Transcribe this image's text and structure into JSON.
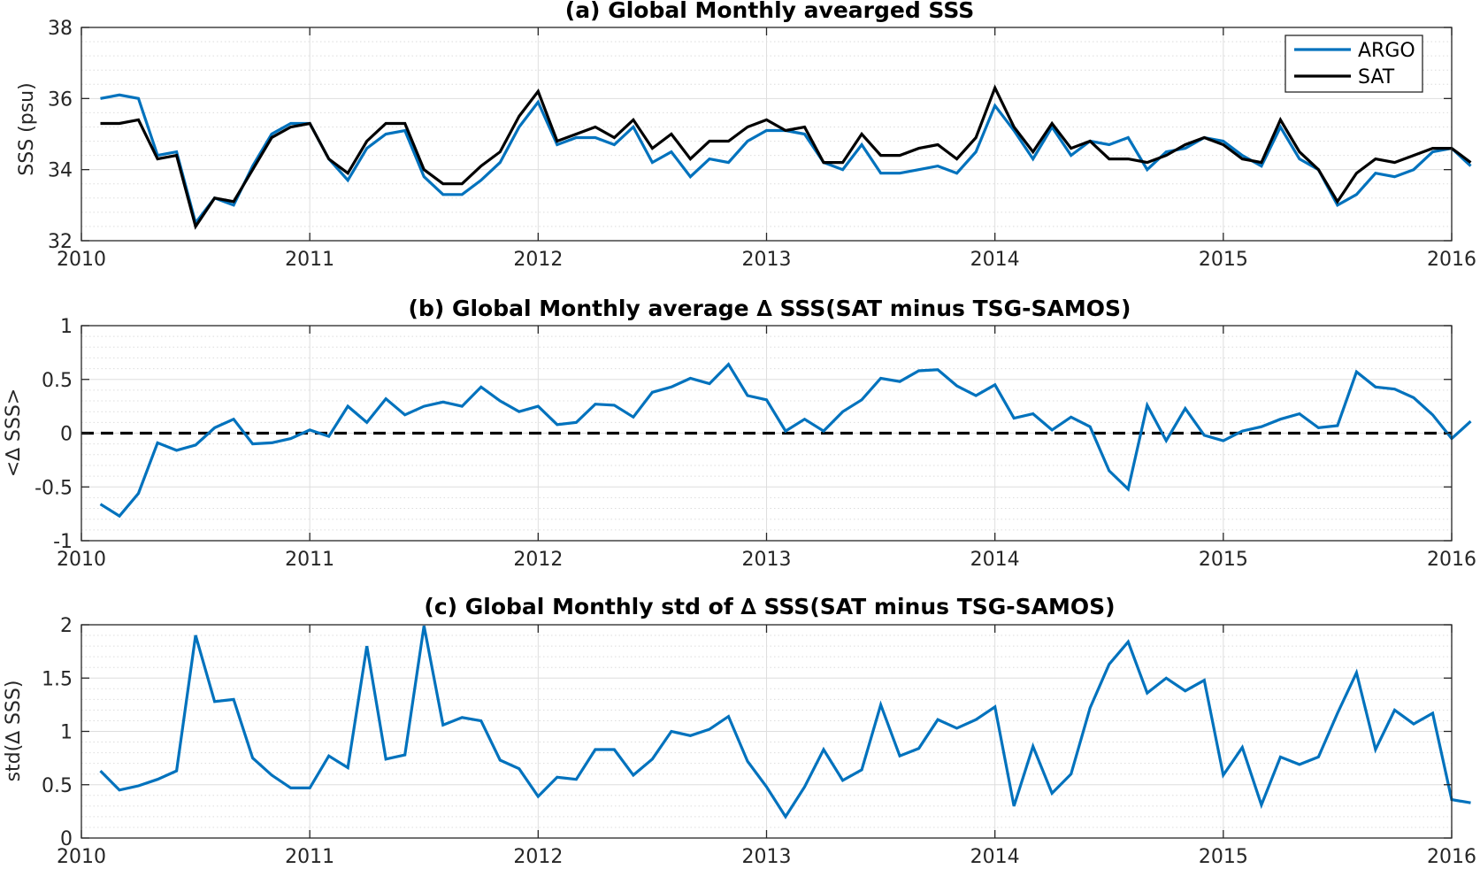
{
  "chart_data": [
    {
      "type": "line",
      "title": "(a) Global Monthly avearged SSS",
      "xlabel": "",
      "ylabel": "SSS (psu)",
      "xlim": [
        2010,
        2016
      ],
      "ylim": [
        32,
        38
      ],
      "xticks": [
        2010,
        2011,
        2012,
        2013,
        2014,
        2015,
        2016
      ],
      "xtick_labels": [
        "2010",
        "2011",
        "2012",
        "2013",
        "2014",
        "2015",
        "2016"
      ],
      "yticks": [
        32,
        34,
        36,
        38
      ],
      "ytick_labels": [
        "32",
        "34",
        "36",
        "38"
      ],
      "grid": true,
      "legend_position": "top-right",
      "series": [
        {
          "name": "ARGO",
          "color": "#0072bd",
          "values": [
            36.0,
            36.1,
            36.0,
            34.4,
            34.5,
            32.5,
            33.2,
            33.0,
            34.1,
            35.0,
            35.3,
            35.3,
            34.3,
            33.7,
            34.6,
            35.0,
            35.1,
            33.8,
            33.3,
            33.3,
            33.7,
            34.2,
            35.2,
            35.9,
            34.7,
            34.9,
            34.9,
            34.7,
            35.2,
            34.2,
            34.5,
            33.8,
            34.3,
            34.2,
            34.8,
            35.1,
            35.1,
            35.0,
            34.2,
            34.0,
            34.7,
            33.9,
            33.9,
            34.0,
            34.1,
            33.9,
            34.5,
            35.8,
            35.1,
            34.3,
            35.2,
            34.4,
            34.8,
            34.7,
            34.9,
            34.0,
            34.5,
            34.6,
            34.9,
            34.8,
            34.4,
            34.1,
            35.2,
            34.3,
            34.0,
            33.0,
            33.3,
            33.9,
            33.8,
            34.0,
            34.5,
            34.6,
            34.1
          ],
          "dates": [
            "2010-02",
            "2010-03",
            "2010-04",
            "2010-05",
            "2010-06",
            "2010-07",
            "2010-08",
            "2010-09",
            "2010-10",
            "2010-11",
            "2010-12",
            "2011-01",
            "2011-02",
            "2011-03",
            "2011-04",
            "2011-05",
            "2011-06",
            "2011-07",
            "2011-08",
            "2011-09",
            "2011-10",
            "2011-11",
            "2011-12",
            "2012-01",
            "2012-02",
            "2012-03",
            "2012-04",
            "2012-05",
            "2012-06",
            "2012-07",
            "2012-08",
            "2012-09",
            "2012-10",
            "2012-11",
            "2012-12",
            "2013-01",
            "2013-02",
            "2013-03",
            "2013-04",
            "2013-05",
            "2013-06",
            "2013-07",
            "2013-08",
            "2013-09",
            "2013-10",
            "2013-11",
            "2013-12",
            "2014-01",
            "2014-02",
            "2014-03",
            "2014-04",
            "2014-05",
            "2014-06",
            "2014-07",
            "2014-08",
            "2014-09",
            "2014-10",
            "2014-11",
            "2014-12",
            "2015-01",
            "2015-02",
            "2015-03",
            "2015-04",
            "2015-05",
            "2015-06",
            "2015-07",
            "2015-08",
            "2015-09",
            "2015-10",
            "2015-11",
            "2015-12",
            "2016-01",
            "2016-02"
          ]
        },
        {
          "name": "SAT",
          "color": "#000000",
          "values": [
            35.3,
            35.3,
            35.4,
            34.3,
            34.4,
            32.4,
            33.2,
            33.1,
            34.0,
            34.9,
            35.2,
            35.3,
            34.3,
            33.9,
            34.8,
            35.3,
            35.3,
            34.0,
            33.6,
            33.6,
            34.1,
            34.5,
            35.5,
            36.2,
            34.8,
            35.0,
            35.2,
            34.9,
            35.4,
            34.6,
            35.0,
            34.3,
            34.8,
            34.8,
            35.2,
            35.4,
            35.1,
            35.2,
            34.2,
            34.2,
            35.0,
            34.4,
            34.4,
            34.6,
            34.7,
            34.3,
            34.9,
            36.3,
            35.2,
            34.5,
            35.3,
            34.6,
            34.8,
            34.3,
            34.3,
            34.2,
            34.4,
            34.7,
            34.9,
            34.7,
            34.3,
            34.2,
            35.4,
            34.5,
            34.0,
            33.1,
            33.9,
            34.3,
            34.2,
            34.4,
            34.6,
            34.6,
            34.2
          ],
          "dates": [
            "2010-02",
            "2010-03",
            "2010-04",
            "2010-05",
            "2010-06",
            "2010-07",
            "2010-08",
            "2010-09",
            "2010-10",
            "2010-11",
            "2010-12",
            "2011-01",
            "2011-02",
            "2011-03",
            "2011-04",
            "2011-05",
            "2011-06",
            "2011-07",
            "2011-08",
            "2011-09",
            "2011-10",
            "2011-11",
            "2011-12",
            "2012-01",
            "2012-02",
            "2012-03",
            "2012-04",
            "2012-05",
            "2012-06",
            "2012-07",
            "2012-08",
            "2012-09",
            "2012-10",
            "2012-11",
            "2012-12",
            "2013-01",
            "2013-02",
            "2013-03",
            "2013-04",
            "2013-05",
            "2013-06",
            "2013-07",
            "2013-08",
            "2013-09",
            "2013-10",
            "2013-11",
            "2013-12",
            "2014-01",
            "2014-02",
            "2014-03",
            "2014-04",
            "2014-05",
            "2014-06",
            "2014-07",
            "2014-08",
            "2014-09",
            "2014-10",
            "2014-11",
            "2014-12",
            "2015-01",
            "2015-02",
            "2015-03",
            "2015-04",
            "2015-05",
            "2015-06",
            "2015-07",
            "2015-08",
            "2015-09",
            "2015-10",
            "2015-11",
            "2015-12",
            "2016-01",
            "2016-02"
          ]
        }
      ]
    },
    {
      "type": "line",
      "title": "(b) Global Monthly average ∆ SSS(SAT minus TSG-SAMOS)",
      "xlabel": "",
      "ylabel": "<∆ SSS>",
      "xlim": [
        2010,
        2016
      ],
      "ylim": [
        -1,
        1
      ],
      "xticks": [
        2010,
        2011,
        2012,
        2013,
        2014,
        2015,
        2016
      ],
      "xtick_labels": [
        "2010",
        "2011",
        "2012",
        "2013",
        "2014",
        "2015",
        "2016"
      ],
      "yticks": [
        -1,
        -0.5,
        0,
        0.5,
        1
      ],
      "ytick_labels": [
        "-1",
        "-0.5",
        "0",
        "0.5",
        "1"
      ],
      "grid": true,
      "reference_line": {
        "y": 0,
        "style": "dashed",
        "color": "#000000"
      },
      "series": [
        {
          "color": "#0072bd",
          "values": [
            -0.66,
            -0.77,
            -0.56,
            -0.09,
            -0.16,
            -0.11,
            0.05,
            0.13,
            -0.1,
            -0.09,
            -0.05,
            0.03,
            -0.03,
            0.25,
            0.1,
            0.32,
            0.17,
            0.25,
            0.29,
            0.25,
            0.43,
            0.3,
            0.2,
            0.25,
            0.08,
            0.1,
            0.27,
            0.26,
            0.15,
            0.38,
            0.43,
            0.51,
            0.46,
            0.64,
            0.35,
            0.31,
            0.02,
            0.13,
            0.02,
            0.2,
            0.31,
            0.51,
            0.48,
            0.58,
            0.59,
            0.44,
            0.35,
            0.45,
            0.14,
            0.18,
            0.03,
            0.15,
            0.06,
            -0.35,
            -0.52,
            0.26,
            -0.07,
            0.23,
            -0.02,
            -0.07,
            0.02,
            0.06,
            0.13,
            0.18,
            0.05,
            0.07,
            0.57,
            0.43,
            0.41,
            0.33,
            0.17,
            -0.05,
            0.11
          ],
          "dates": [
            "2010-02",
            "2010-03",
            "2010-04",
            "2010-05",
            "2010-06",
            "2010-07",
            "2010-08",
            "2010-09",
            "2010-10",
            "2010-11",
            "2010-12",
            "2011-01",
            "2011-02",
            "2011-03",
            "2011-04",
            "2011-05",
            "2011-06",
            "2011-07",
            "2011-08",
            "2011-09",
            "2011-10",
            "2011-11",
            "2011-12",
            "2012-01",
            "2012-02",
            "2012-03",
            "2012-04",
            "2012-05",
            "2012-06",
            "2012-07",
            "2012-08",
            "2012-09",
            "2012-10",
            "2012-11",
            "2012-12",
            "2013-01",
            "2013-02",
            "2013-03",
            "2013-04",
            "2013-05",
            "2013-06",
            "2013-07",
            "2013-08",
            "2013-09",
            "2013-10",
            "2013-11",
            "2013-12",
            "2014-01",
            "2014-02",
            "2014-03",
            "2014-04",
            "2014-05",
            "2014-06",
            "2014-07",
            "2014-08",
            "2014-09",
            "2014-10",
            "2014-11",
            "2014-12",
            "2015-01",
            "2015-02",
            "2015-03",
            "2015-04",
            "2015-05",
            "2015-06",
            "2015-07",
            "2015-08",
            "2015-09",
            "2015-10",
            "2015-11",
            "2015-12",
            "2016-01",
            "2016-02"
          ]
        }
      ]
    },
    {
      "type": "line",
      "title": "(c) Global Monthly std of ∆ SSS(SAT minus TSG-SAMOS)",
      "xlabel": "",
      "ylabel": "std(∆ SSS)",
      "xlim": [
        2010,
        2016
      ],
      "ylim": [
        0,
        2
      ],
      "xticks": [
        2010,
        2011,
        2012,
        2013,
        2014,
        2015,
        2016
      ],
      "xtick_labels": [
        "2010",
        "2011",
        "2012",
        "2013",
        "2014",
        "2015",
        "2016"
      ],
      "yticks": [
        0,
        0.5,
        1,
        1.5,
        2
      ],
      "ytick_labels": [
        "0",
        "0.5",
        "1",
        "1.5",
        "2"
      ],
      "grid": true,
      "series": [
        {
          "color": "#0072bd",
          "values": [
            0.63,
            0.45,
            0.49,
            0.55,
            0.63,
            1.9,
            1.28,
            1.3,
            0.75,
            0.59,
            0.47,
            0.47,
            0.77,
            0.66,
            1.8,
            0.74,
            0.78,
            1.99,
            1.06,
            1.13,
            1.1,
            0.73,
            0.65,
            0.39,
            0.57,
            0.55,
            0.83,
            0.83,
            0.59,
            0.74,
            1.0,
            0.96,
            1.02,
            1.14,
            0.72,
            0.48,
            0.2,
            0.48,
            0.83,
            0.54,
            0.64,
            1.25,
            0.77,
            0.84,
            1.11,
            1.03,
            1.11,
            1.23,
            0.3,
            0.86,
            0.42,
            0.6,
            1.22,
            1.63,
            1.84,
            1.36,
            1.5,
            1.38,
            1.48,
            0.59,
            0.85,
            0.31,
            0.76,
            0.69,
            0.76,
            1.17,
            1.55,
            0.83,
            1.2,
            1.07,
            1.17,
            0.36,
            0.33
          ],
          "dates": [
            "2010-02",
            "2010-03",
            "2010-04",
            "2010-05",
            "2010-06",
            "2010-07",
            "2010-08",
            "2010-09",
            "2010-10",
            "2010-11",
            "2010-12",
            "2011-01",
            "2011-02",
            "2011-03",
            "2011-04",
            "2011-05",
            "2011-06",
            "2011-07",
            "2011-08",
            "2011-09",
            "2011-10",
            "2011-11",
            "2011-12",
            "2012-01",
            "2012-02",
            "2012-03",
            "2012-04",
            "2012-05",
            "2012-06",
            "2012-07",
            "2012-08",
            "2012-09",
            "2012-10",
            "2012-11",
            "2012-12",
            "2013-01",
            "2013-02",
            "2013-03",
            "2013-04",
            "2013-05",
            "2013-06",
            "2013-07",
            "2013-08",
            "2013-09",
            "2013-10",
            "2013-11",
            "2013-12",
            "2014-01",
            "2014-02",
            "2014-03",
            "2014-04",
            "2014-05",
            "2014-06",
            "2014-07",
            "2014-08",
            "2014-09",
            "2014-10",
            "2014-11",
            "2014-12",
            "2015-01",
            "2015-02",
            "2015-03",
            "2015-04",
            "2015-05",
            "2015-06",
            "2015-07",
            "2015-08",
            "2015-09",
            "2015-10",
            "2015-11",
            "2015-12",
            "2016-01",
            "2016-02"
          ]
        }
      ]
    }
  ]
}
